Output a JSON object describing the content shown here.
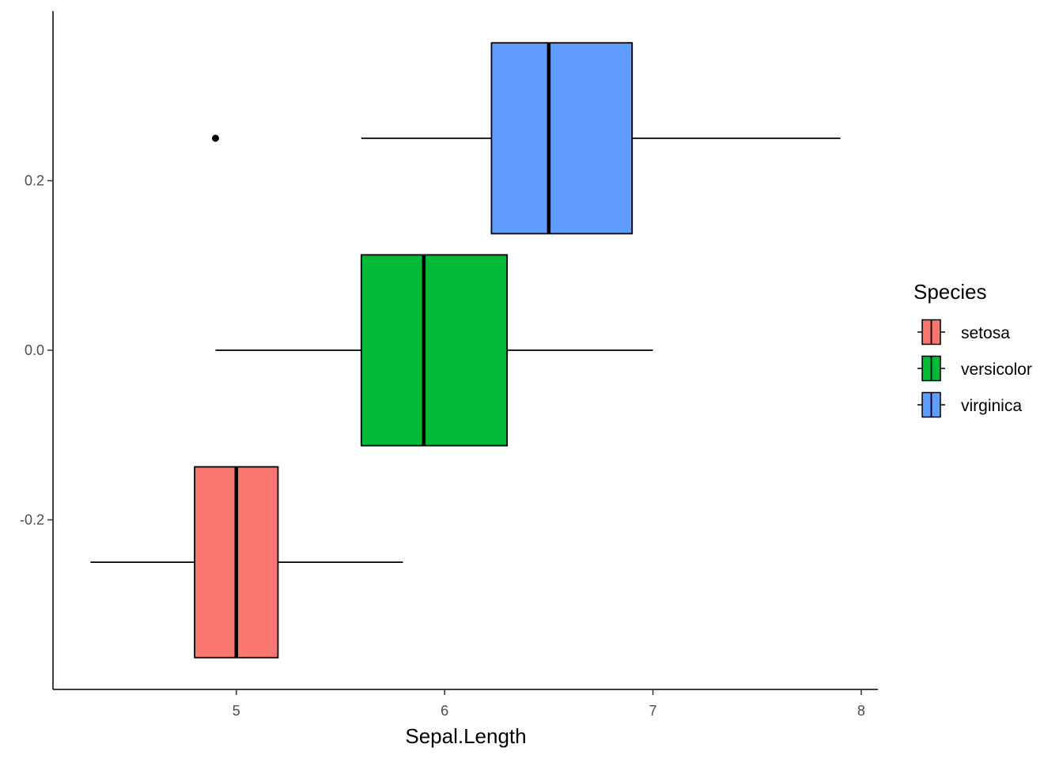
{
  "chart_data": {
    "type": "boxplot",
    "orientation": "horizontal",
    "xlabel": "Sepal.Length",
    "ylabel": "",
    "xlim": [
      4.12,
      8.08
    ],
    "ylim": [
      -0.4,
      0.4
    ],
    "x_ticks": [
      5,
      6,
      7,
      8
    ],
    "y_ticks": [
      -0.2,
      0.0,
      0.2
    ],
    "y_tick_labels": [
      "-0.2",
      "0.0",
      "0.2"
    ],
    "grid": false,
    "legend": {
      "title": "Species",
      "position": "right",
      "entries": [
        "setosa",
        "versicolor",
        "virginica"
      ]
    },
    "series": [
      {
        "name": "setosa",
        "color": "#F8766D",
        "y_center": -0.25,
        "y_halfwidth": 0.1125,
        "whisker_low": 4.3,
        "q1": 4.8,
        "median": 5.0,
        "q3": 5.2,
        "whisker_high": 5.8,
        "outliers": []
      },
      {
        "name": "versicolor",
        "color": "#00BA38",
        "y_center": 0.0,
        "y_halfwidth": 0.1125,
        "whisker_low": 4.9,
        "q1": 5.6,
        "median": 5.9,
        "q3": 6.3,
        "whisker_high": 7.0,
        "outliers": []
      },
      {
        "name": "virginica",
        "color": "#619CFF",
        "y_center": 0.25,
        "y_halfwidth": 0.1125,
        "whisker_low": 5.6,
        "q1": 6.225,
        "median": 6.5,
        "q3": 6.9,
        "whisker_high": 7.9,
        "outliers": [
          4.9
        ]
      }
    ]
  }
}
